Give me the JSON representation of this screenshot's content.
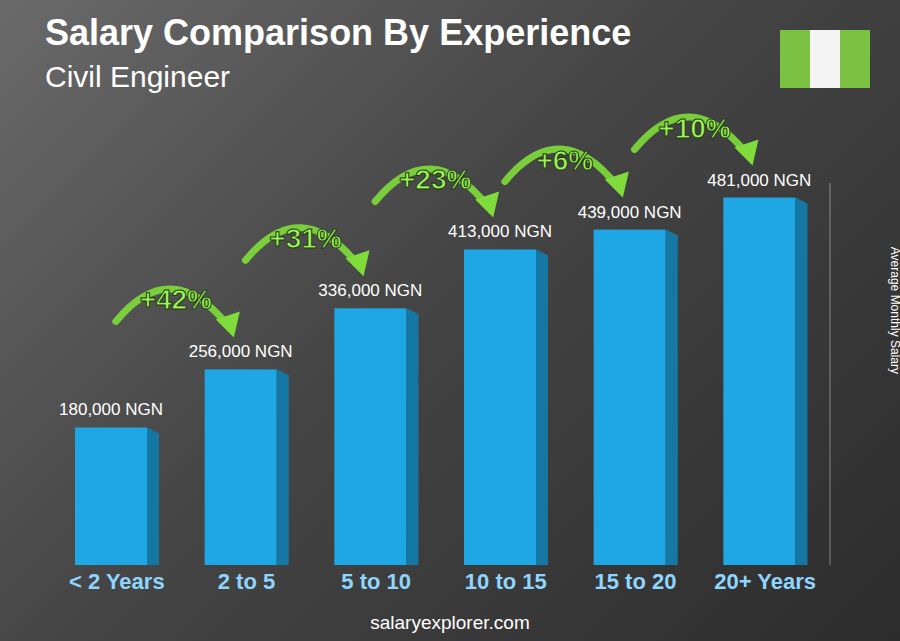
{
  "chart_data": {
    "type": "bar",
    "title": "Salary Comparison By Experience",
    "subtitle": "Civil Engineer",
    "y_label": "Average Monthly Salary",
    "source": "salaryexplorer.com",
    "categories": [
      "< 2 Years",
      "2 to 5",
      "5 to 10",
      "10 to 15",
      "15 to 20",
      "20+ Years"
    ],
    "values": [
      180000,
      256000,
      336000,
      413000,
      439000,
      481000
    ],
    "value_labels": [
      "180,000 NGN",
      "256,000 NGN",
      "336,000 NGN",
      "413,000 NGN",
      "439,000 NGN",
      "481,000 NGN"
    ],
    "annotations": [
      "+42%",
      "+31%",
      "+23%",
      "+6%",
      "+10%"
    ],
    "color": "#1ea7e4",
    "ylim": [
      0,
      500000
    ],
    "yticks": [
      0,
      500000
    ],
    "grid": false,
    "data_labels": true,
    "tick_labels": "x"
  }
}
